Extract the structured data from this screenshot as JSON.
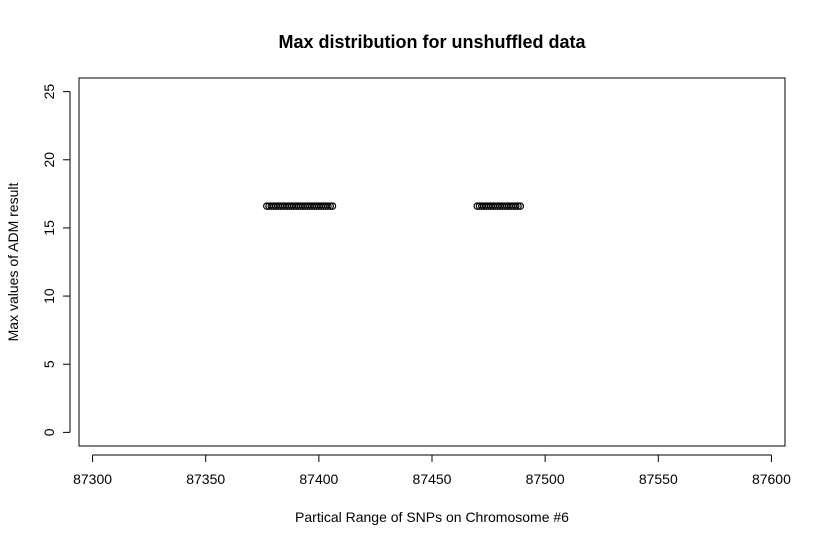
{
  "chart_data": {
    "type": "scatter",
    "title": "Max distribution for unshuffled data",
    "xlabel": "Partical Range of SNPs on Chromosome #6",
    "ylabel": "Max values of ADM result",
    "xlim": [
      87294,
      87606
    ],
    "ylim": [
      -1,
      26
    ],
    "x_ticks": [
      87300,
      87350,
      87400,
      87450,
      87500,
      87550,
      87600
    ],
    "x_tick_labels": [
      "87300",
      "87350",
      "87400",
      "87450",
      "87500",
      "87550",
      "87600"
    ],
    "y_ticks": [
      0,
      5,
      10,
      15,
      20,
      25
    ],
    "y_tick_labels": [
      "0",
      "5",
      "10",
      "15",
      "20",
      "25"
    ],
    "grid": false,
    "marker": "open-circle",
    "series": [
      {
        "x": [
          87377,
          87378,
          87379,
          87380,
          87381,
          87382,
          87383,
          87384,
          87385,
          87386,
          87387,
          87388,
          87389,
          87390,
          87391,
          87392,
          87393,
          87394,
          87395,
          87396,
          87397,
          87398,
          87399,
          87400,
          87401,
          87402,
          87403,
          87404,
          87405,
          87406,
          87470,
          87471,
          87472,
          87473,
          87474,
          87475,
          87476,
          87477,
          87478,
          87479,
          87480,
          87481,
          87482,
          87483,
          87484,
          87485,
          87486,
          87487,
          87488,
          87489
        ],
        "y": [
          16.6,
          16.6,
          16.6,
          16.6,
          16.6,
          16.6,
          16.6,
          16.6,
          16.6,
          16.6,
          16.6,
          16.6,
          16.6,
          16.6,
          16.6,
          16.6,
          16.6,
          16.6,
          16.6,
          16.6,
          16.6,
          16.6,
          16.6,
          16.6,
          16.6,
          16.6,
          16.6,
          16.6,
          16.6,
          16.6,
          16.6,
          16.6,
          16.6,
          16.6,
          16.6,
          16.6,
          16.6,
          16.6,
          16.6,
          16.6,
          16.6,
          16.6,
          16.6,
          16.6,
          16.6,
          16.6,
          16.6,
          16.6,
          16.6,
          16.6
        ]
      }
    ]
  }
}
